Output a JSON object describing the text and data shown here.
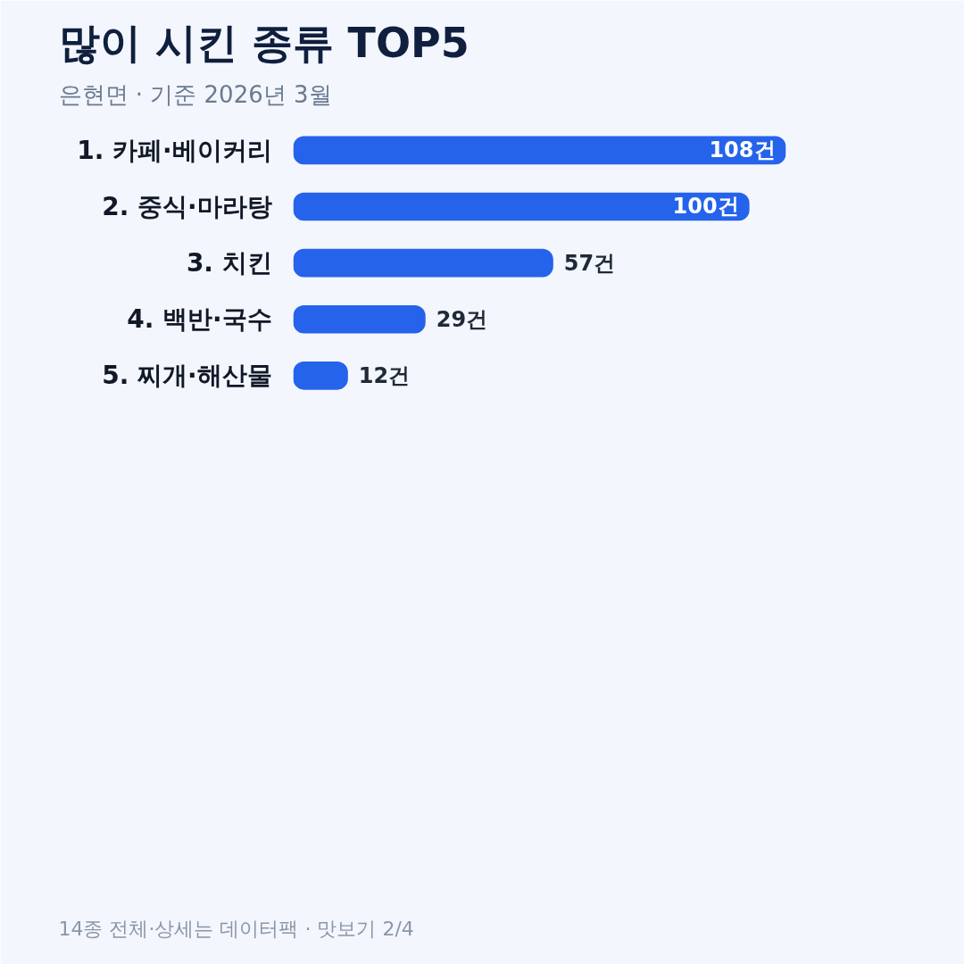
{
  "chart_data": {
    "type": "bar",
    "orientation": "horizontal",
    "title": "많이 시킨 종류 TOP5",
    "subtitle": "은현면 · 기준 2026년 3월",
    "categories": [
      "1.  카페·베이커리",
      "2.  중식·마라탕",
      "3.  치킨",
      "4.  백반·국수",
      "5.  찌개·해산물"
    ],
    "values": [
      108,
      100,
      57,
      29,
      12
    ],
    "value_labels": [
      "108건",
      "100건",
      "57건",
      "29건",
      "12건"
    ],
    "color": "#2563eb",
    "xlim": [
      0,
      108
    ],
    "grid": false,
    "annotations": [
      "14종 전체·상세는 데이터팩 · 맛보기 2/4"
    ]
  }
}
